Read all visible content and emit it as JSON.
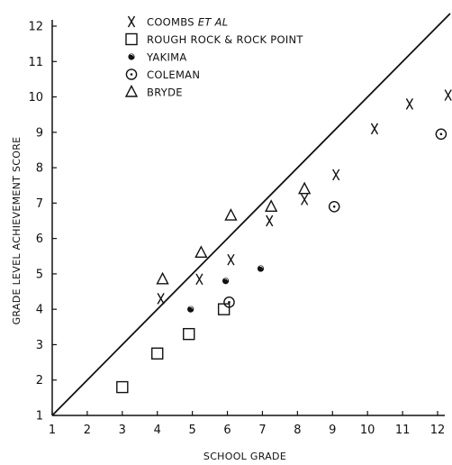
{
  "chart_data": {
    "type": "scatter",
    "xlabel": "SCHOOL GRADE",
    "ylabel": "GRADE LEVEL ACHIEVEMENT SCORE",
    "xlim": [
      1,
      12
    ],
    "ylim": [
      1,
      12
    ],
    "x_ticks": [
      "1",
      "2",
      "3",
      "4",
      "5",
      "6",
      "7",
      "8",
      "9",
      "10",
      "11",
      "12"
    ],
    "y_ticks": [
      "1",
      "2",
      "3",
      "4",
      "5",
      "6",
      "7",
      "8",
      "9",
      "10",
      "11",
      "12"
    ],
    "grid": false,
    "legend_position": "top-left",
    "reference_line": {
      "type": "identity",
      "x": [
        1,
        12
      ],
      "y": [
        1,
        12
      ]
    },
    "series": [
      {
        "name": "COOMBS ET AL",
        "marker": "x",
        "points": [
          [
            4.1,
            4.3
          ],
          [
            5.2,
            4.85
          ],
          [
            6.1,
            5.4
          ],
          [
            7.2,
            6.5
          ],
          [
            8.2,
            7.1
          ],
          [
            9.1,
            7.8
          ],
          [
            10.2,
            9.1
          ],
          [
            11.2,
            9.8
          ],
          [
            12.3,
            10.05
          ]
        ]
      },
      {
        "name": "ROUGH ROCK & ROCK POINT",
        "marker": "square",
        "points": [
          [
            3.0,
            1.8
          ],
          [
            4.0,
            2.75
          ],
          [
            4.9,
            3.3
          ],
          [
            5.9,
            4.0
          ]
        ]
      },
      {
        "name": "YAKIMA",
        "marker": "half-filled-circle",
        "points": [
          [
            4.95,
            4.0
          ],
          [
            5.95,
            4.8
          ],
          [
            6.95,
            5.15
          ]
        ]
      },
      {
        "name": "COLEMAN",
        "marker": "circle-dot",
        "points": [
          [
            6.05,
            4.2
          ],
          [
            9.05,
            6.9
          ],
          [
            12.1,
            8.95
          ]
        ]
      },
      {
        "name": "BRYDE",
        "marker": "triangle",
        "points": [
          [
            4.15,
            4.85
          ],
          [
            5.25,
            5.6
          ],
          [
            6.1,
            6.65
          ],
          [
            7.25,
            6.9
          ],
          [
            8.2,
            7.4
          ]
        ]
      }
    ],
    "legend": [
      {
        "label": "COOMBS",
        "label_italic": "ET AL",
        "marker": "x"
      },
      {
        "label": "ROUGH ROCK & ROCK POINT",
        "marker": "square"
      },
      {
        "label": "YAKIMA",
        "marker": "half-filled-circle"
      },
      {
        "label": "COLEMAN",
        "marker": "circle-dot"
      },
      {
        "label": "BRYDE",
        "marker": "triangle"
      }
    ]
  }
}
